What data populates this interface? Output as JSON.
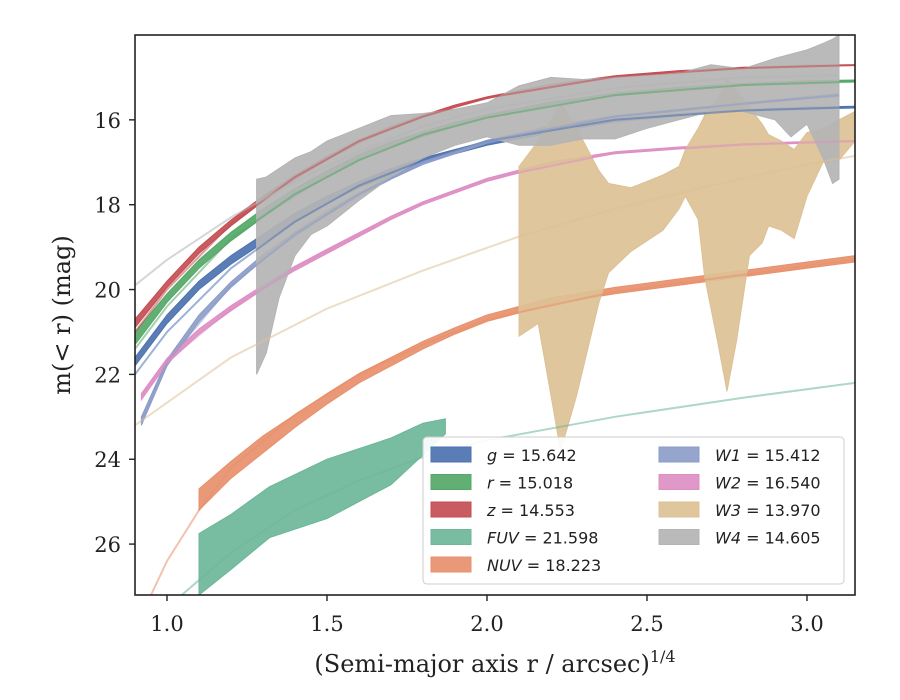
{
  "chart_data": {
    "type": "line",
    "xlabel_base": "(Semi-major axis r / arcsec)",
    "xlabel_sup": "1/4",
    "ylabel": "m(< r) (mag)",
    "xlim": [
      0.9,
      3.15
    ],
    "ylim": [
      27.2,
      14.0
    ],
    "y_inverted": true,
    "xticks": [
      "1.0",
      "1.5",
      "2.0",
      "2.5",
      "3.0"
    ],
    "yticks": [
      "16",
      "18",
      "20",
      "22",
      "24",
      "26"
    ],
    "legend_position": "lower-right",
    "series": [
      {
        "name": "g = 15.642",
        "color": "#4c72b0",
        "band_x": [
          0.9,
          1.0,
          1.1,
          1.2,
          1.3,
          1.4,
          1.5,
          1.6,
          1.7,
          1.8,
          1.9,
          2.0,
          2.2,
          2.4,
          2.6,
          2.8,
          3.0,
          3.15
        ],
        "band_lo": [
          21.8,
          20.8,
          20.0,
          19.4,
          18.9,
          18.4,
          17.95,
          17.6,
          17.3,
          17.0,
          16.8,
          16.6,
          16.3,
          16.05,
          15.9,
          15.8,
          15.75,
          15.72
        ],
        "band_hi": [
          21.6,
          20.6,
          19.8,
          19.2,
          18.7,
          18.2,
          17.8,
          17.45,
          17.15,
          16.9,
          16.7,
          16.5,
          16.2,
          15.98,
          15.85,
          15.76,
          15.7,
          15.68
        ],
        "fit": [
          [
            0.9,
            22.0
          ],
          [
            1.0,
            21.0
          ],
          [
            1.2,
            19.5
          ],
          [
            1.4,
            18.4
          ],
          [
            1.6,
            17.55
          ],
          [
            1.8,
            16.95
          ],
          [
            2.0,
            16.5
          ],
          [
            2.4,
            16.0
          ],
          [
            2.8,
            15.78
          ],
          [
            3.15,
            15.7
          ]
        ]
      },
      {
        "name": "r = 15.018",
        "color": "#55a868",
        "band_x": [
          0.9,
          1.0,
          1.1,
          1.2,
          1.3,
          1.4,
          1.5,
          1.6,
          1.7,
          1.8,
          1.9,
          2.0,
          2.2,
          2.4,
          2.6,
          2.8,
          3.0,
          3.15
        ],
        "band_lo": [
          21.3,
          20.3,
          19.5,
          18.85,
          18.3,
          17.8,
          17.35,
          16.95,
          16.65,
          16.4,
          16.15,
          15.95,
          15.65,
          15.42,
          15.28,
          15.18,
          15.12,
          15.1
        ],
        "band_hi": [
          21.0,
          20.1,
          19.3,
          18.65,
          18.1,
          17.62,
          17.2,
          16.82,
          16.52,
          16.28,
          16.06,
          15.88,
          15.58,
          15.37,
          15.23,
          15.14,
          15.08,
          15.06
        ],
        "fit": [
          [
            0.9,
            21.4
          ],
          [
            1.0,
            20.4
          ],
          [
            1.2,
            18.8
          ],
          [
            1.4,
            17.75
          ],
          [
            1.6,
            16.95
          ],
          [
            1.8,
            16.35
          ],
          [
            2.0,
            15.95
          ],
          [
            2.4,
            15.42
          ],
          [
            2.8,
            15.18
          ],
          [
            3.15,
            15.1
          ]
        ]
      },
      {
        "name": "z = 14.553",
        "color": "#c44e52",
        "band_x": [
          0.9,
          1.0,
          1.1,
          1.2,
          1.3,
          1.4,
          1.5,
          1.6,
          1.7,
          1.8,
          1.9,
          2.0,
          2.2,
          2.4,
          2.6,
          2.8,
          3.0,
          3.15
        ],
        "band_lo": [
          20.9,
          19.95,
          19.15,
          18.5,
          17.92,
          17.4,
          16.95,
          16.55,
          16.22,
          15.95,
          15.7,
          15.5,
          15.2,
          15.0,
          14.87,
          14.79,
          14.74,
          14.72
        ],
        "band_hi": [
          20.7,
          19.8,
          19.0,
          18.36,
          17.8,
          17.3,
          16.86,
          16.47,
          16.15,
          15.89,
          15.65,
          15.46,
          15.16,
          14.96,
          14.84,
          14.76,
          14.71,
          14.7
        ],
        "fit": [
          [
            0.9,
            21.0
          ],
          [
            1.0,
            20.0
          ],
          [
            1.2,
            18.45
          ],
          [
            1.4,
            17.35
          ],
          [
            1.6,
            16.5
          ],
          [
            1.8,
            15.92
          ],
          [
            2.0,
            15.48
          ],
          [
            2.4,
            14.98
          ],
          [
            2.8,
            14.78
          ],
          [
            3.15,
            14.71
          ]
        ]
      },
      {
        "name": "FUV = 21.598",
        "color": "#6db69a",
        "band_x": [
          1.1,
          1.2,
          1.32,
          1.5,
          1.7,
          1.8,
          1.87
        ],
        "band_lo": [
          27.2,
          26.6,
          25.85,
          25.4,
          24.6,
          23.9,
          23.4
        ],
        "band_hi": [
          25.75,
          25.3,
          24.65,
          24.0,
          23.5,
          23.15,
          23.05
        ],
        "fit": [
          [
            0.9,
            28.6
          ],
          [
            1.0,
            27.5
          ],
          [
            1.2,
            26.2
          ],
          [
            1.4,
            25.2
          ],
          [
            1.6,
            24.5
          ],
          [
            1.8,
            23.95
          ],
          [
            2.0,
            23.55
          ],
          [
            2.4,
            23.0
          ],
          [
            2.8,
            22.55
          ],
          [
            3.15,
            22.2
          ]
        ]
      },
      {
        "name": "NUV = 18.223",
        "color": "#e8906c",
        "band_x": [
          1.1,
          1.2,
          1.3,
          1.4,
          1.5,
          1.6,
          1.7,
          1.8,
          1.9,
          2.0,
          2.2,
          2.4,
          2.6,
          2.8,
          3.0,
          3.15
        ],
        "band_lo": [
          25.2,
          24.45,
          23.85,
          23.25,
          22.7,
          22.2,
          21.8,
          21.4,
          21.05,
          20.75,
          20.35,
          20.1,
          19.9,
          19.7,
          19.5,
          19.35
        ],
        "band_hi": [
          24.7,
          24.05,
          23.45,
          22.95,
          22.45,
          21.98,
          21.6,
          21.22,
          20.9,
          20.6,
          20.2,
          19.95,
          19.75,
          19.55,
          19.35,
          19.2
        ],
        "fit": [
          [
            0.95,
            27.2
          ],
          [
            1.0,
            26.4
          ],
          [
            1.1,
            25.2
          ],
          [
            1.2,
            24.2
          ],
          [
            1.4,
            22.95
          ],
          [
            1.6,
            22.0
          ],
          [
            1.8,
            21.3
          ],
          [
            2.0,
            20.7
          ],
          [
            2.4,
            20.05
          ],
          [
            2.8,
            19.65
          ],
          [
            3.15,
            19.3
          ]
        ]
      },
      {
        "name": "W1 = 15.412",
        "color": "#8c9dc8",
        "band_x": [
          0.92,
          1.0,
          1.1,
          1.2,
          1.3,
          1.4,
          1.5,
          1.6,
          1.7,
          1.8,
          2.0,
          2.2,
          2.4,
          2.6,
          2.8,
          3.0,
          3.1
        ],
        "band_lo": [
          23.2,
          21.8,
          20.75,
          19.95,
          19.3,
          18.75,
          18.25,
          17.8,
          17.4,
          17.05,
          16.55,
          16.2,
          15.95,
          15.8,
          15.65,
          15.5,
          15.45
        ],
        "band_hi": [
          23.0,
          21.65,
          20.6,
          19.82,
          19.18,
          18.64,
          18.15,
          17.72,
          17.32,
          16.98,
          16.48,
          16.14,
          15.9,
          15.75,
          15.6,
          15.45,
          15.38
        ],
        "fit": [
          [
            0.92,
            23.1
          ],
          [
            1.0,
            21.7
          ],
          [
            1.2,
            19.9
          ],
          [
            1.4,
            18.7
          ],
          [
            1.6,
            17.75
          ],
          [
            1.8,
            17.0
          ],
          [
            2.0,
            16.5
          ],
          [
            2.4,
            15.92
          ],
          [
            2.8,
            15.62
          ],
          [
            3.1,
            15.42
          ]
        ]
      },
      {
        "name": "W2 = 16.540",
        "color": "#dd8fc4",
        "band_x": [
          0.92,
          1.0,
          1.1,
          1.2,
          1.3,
          1.4,
          1.5,
          1.6,
          1.7,
          1.8,
          2.0,
          2.2,
          2.4,
          2.6,
          2.8,
          3.0,
          3.15
        ],
        "band_lo": [
          22.6,
          21.75,
          21.05,
          20.5,
          20.0,
          19.55,
          19.15,
          18.75,
          18.35,
          18.0,
          17.45,
          17.05,
          16.8,
          16.68,
          16.6,
          16.55,
          16.52
        ],
        "band_hi": [
          22.45,
          21.62,
          20.93,
          20.38,
          19.9,
          19.45,
          19.05,
          18.66,
          18.27,
          17.93,
          17.38,
          16.99,
          16.75,
          16.64,
          16.56,
          16.51,
          16.48
        ],
        "fit": [
          [
            0.92,
            22.5
          ],
          [
            1.0,
            21.7
          ],
          [
            1.2,
            20.45
          ],
          [
            1.4,
            19.5
          ],
          [
            1.6,
            18.7
          ],
          [
            1.8,
            17.95
          ],
          [
            2.0,
            17.4
          ],
          [
            2.4,
            16.78
          ],
          [
            2.8,
            16.58
          ],
          [
            3.15,
            16.5
          ]
        ]
      },
      {
        "name": "W3 = 13.970",
        "color": "#dcc195",
        "band_x": [
          2.1,
          2.16,
          2.2,
          2.23,
          2.28,
          2.35,
          2.38,
          2.45,
          2.55,
          2.6,
          2.62,
          2.66,
          2.68,
          2.72,
          2.75,
          2.78,
          2.82,
          2.86,
          2.88,
          2.92,
          2.96,
          3.0,
          3.05,
          3.1,
          3.15
        ],
        "band_lo": [
          21.1,
          20.8,
          22.5,
          23.8,
          22.5,
          20.3,
          19.6,
          19.1,
          18.6,
          18.1,
          17.8,
          18.35,
          19.7,
          21.2,
          22.4,
          21.2,
          19.2,
          18.9,
          18.5,
          18.6,
          18.8,
          17.8,
          17.0,
          16.95,
          16.5
        ],
        "band_hi": [
          17.1,
          16.5,
          16.0,
          15.6,
          16.2,
          17.2,
          17.5,
          17.6,
          17.3,
          17.1,
          16.7,
          16.2,
          15.9,
          15.5,
          15.05,
          15.3,
          15.7,
          16.1,
          16.35,
          16.5,
          16.7,
          16.3,
          16.2,
          16.0,
          15.8
        ],
        "fit": [
          [
            0.9,
            23.2
          ],
          [
            1.2,
            21.6
          ],
          [
            1.5,
            20.45
          ],
          [
            1.8,
            19.55
          ],
          [
            2.1,
            18.75
          ],
          [
            2.4,
            18.1
          ],
          [
            2.7,
            17.55
          ],
          [
            3.0,
            17.05
          ],
          [
            3.15,
            16.85
          ]
        ]
      },
      {
        "name": "W4 = 14.605",
        "color": "#b4b4b4",
        "band_x": [
          1.28,
          1.31,
          1.35,
          1.4,
          1.45,
          1.5,
          1.55,
          1.6,
          1.7,
          1.8,
          1.9,
          2.0,
          2.1,
          2.2,
          2.3,
          2.4,
          2.5,
          2.6,
          2.7,
          2.8,
          2.9,
          2.95,
          3.0,
          3.05,
          3.08,
          3.1
        ],
        "band_lo": [
          22.0,
          21.5,
          20.2,
          19.2,
          18.7,
          18.5,
          18.2,
          17.9,
          17.35,
          16.9,
          16.6,
          16.4,
          16.6,
          16.6,
          16.45,
          16.45,
          16.2,
          16.0,
          15.8,
          15.8,
          16.0,
          16.4,
          16.1,
          16.9,
          17.5,
          17.4
        ],
        "band_hi": [
          17.4,
          17.35,
          17.15,
          16.9,
          16.75,
          16.5,
          16.35,
          16.2,
          15.9,
          15.85,
          15.75,
          15.6,
          15.2,
          15.0,
          15.05,
          15.0,
          14.95,
          14.9,
          14.7,
          14.8,
          14.55,
          14.45,
          14.35,
          14.2,
          14.1,
          14.0
        ],
        "fit": [
          [
            0.9,
            19.9
          ],
          [
            1.0,
            19.3
          ],
          [
            1.2,
            18.3
          ],
          [
            1.4,
            17.45
          ],
          [
            1.6,
            16.75
          ],
          [
            1.8,
            16.15
          ],
          [
            2.0,
            15.75
          ],
          [
            2.4,
            15.25
          ],
          [
            2.8,
            15.0
          ],
          [
            3.1,
            14.95
          ]
        ]
      }
    ]
  }
}
